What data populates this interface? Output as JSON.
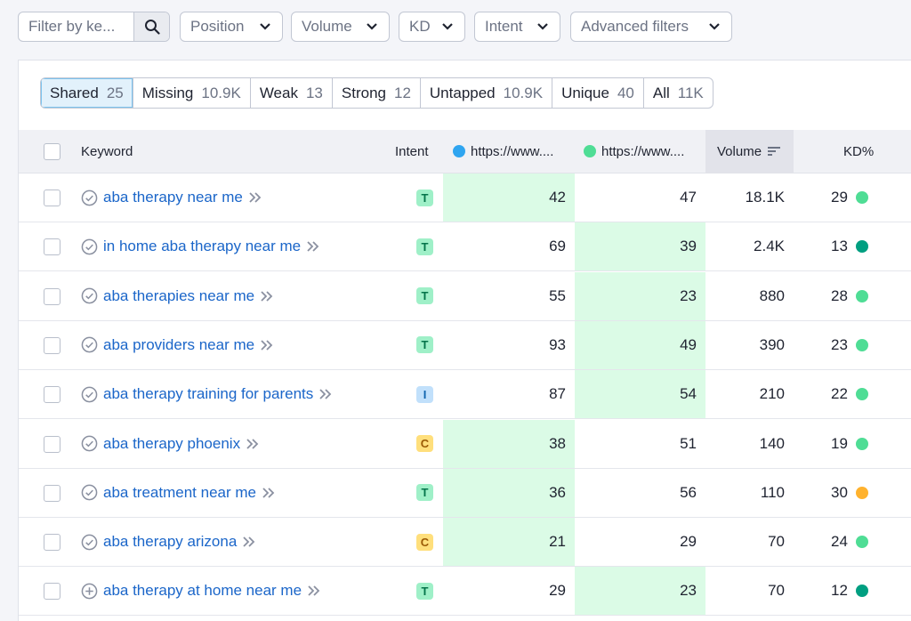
{
  "filters": {
    "search_placeholder": "Filter by ke...",
    "search_icon": "search-icon",
    "position_label": "Position",
    "volume_label": "Volume",
    "kd_label": "KD",
    "intent_label": "Intent",
    "advanced_label": "Advanced filters"
  },
  "segments": [
    {
      "label": "Shared",
      "count": "25",
      "active": true
    },
    {
      "label": "Missing",
      "count": "10.9K",
      "active": false
    },
    {
      "label": "Weak",
      "count": "13",
      "active": false
    },
    {
      "label": "Strong",
      "count": "12",
      "active": false
    },
    {
      "label": "Untapped",
      "count": "10.9K",
      "active": false
    },
    {
      "label": "Unique",
      "count": "40",
      "active": false
    },
    {
      "label": "All",
      "count": "11K",
      "active": false
    }
  ],
  "table": {
    "headers": {
      "keyword": "Keyword",
      "intent": "Intent",
      "domain1": "https://www....",
      "domain2": "https://www....",
      "volume": "Volume",
      "kd": "KD%"
    },
    "domain_colors": {
      "domain1": "#2fa5f0",
      "domain2": "#4fdd95"
    },
    "intent_colors": {
      "T": {
        "bg": "#9ff0c8",
        "fg": "#04744a"
      },
      "I": {
        "bg": "#c1e0fb",
        "fg": "#0e63ae"
      },
      "C": {
        "bg": "#ffdf7c",
        "fg": "#9a5a05"
      }
    },
    "kd_colors": {
      "light": "#4fdd95",
      "dark": "#009f81",
      "orange": "#ffb22e"
    },
    "rows": [
      {
        "keyword": "aba therapy near me",
        "icon": "check-circle-icon",
        "intent": "T",
        "pos1": "42",
        "pos2": "47",
        "highlight": 1,
        "volume": "18.1K",
        "kd": "29",
        "kd_color": "light"
      },
      {
        "keyword": "in home aba therapy near me",
        "icon": "check-circle-icon",
        "intent": "T",
        "pos1": "69",
        "pos2": "39",
        "highlight": 2,
        "volume": "2.4K",
        "kd": "13",
        "kd_color": "dark"
      },
      {
        "keyword": "aba therapies near me",
        "icon": "check-circle-icon",
        "intent": "T",
        "pos1": "55",
        "pos2": "23",
        "highlight": 2,
        "volume": "880",
        "kd": "28",
        "kd_color": "light"
      },
      {
        "keyword": "aba providers near me",
        "icon": "check-circle-icon",
        "intent": "T",
        "pos1": "93",
        "pos2": "49",
        "highlight": 2,
        "volume": "390",
        "kd": "23",
        "kd_color": "light"
      },
      {
        "keyword": "aba therapy training for parents",
        "icon": "check-circle-icon",
        "intent": "I",
        "pos1": "87",
        "pos2": "54",
        "highlight": 2,
        "volume": "210",
        "kd": "22",
        "kd_color": "light"
      },
      {
        "keyword": "aba therapy phoenix",
        "icon": "check-circle-icon",
        "intent": "C",
        "pos1": "38",
        "pos2": "51",
        "highlight": 1,
        "volume": "140",
        "kd": "19",
        "kd_color": "light"
      },
      {
        "keyword": "aba treatment near me",
        "icon": "check-circle-icon",
        "intent": "T",
        "pos1": "36",
        "pos2": "56",
        "highlight": 1,
        "volume": "110",
        "kd": "30",
        "kd_color": "orange"
      },
      {
        "keyword": "aba therapy arizona",
        "icon": "check-circle-icon",
        "intent": "C",
        "pos1": "21",
        "pos2": "29",
        "highlight": 1,
        "volume": "70",
        "kd": "24",
        "kd_color": "light"
      },
      {
        "keyword": "aba therapy at home near me",
        "icon": "plus-circle-icon",
        "intent": "T",
        "pos1": "29",
        "pos2": "23",
        "highlight": 2,
        "volume": "70",
        "kd": "12",
        "kd_color": "dark"
      }
    ]
  }
}
